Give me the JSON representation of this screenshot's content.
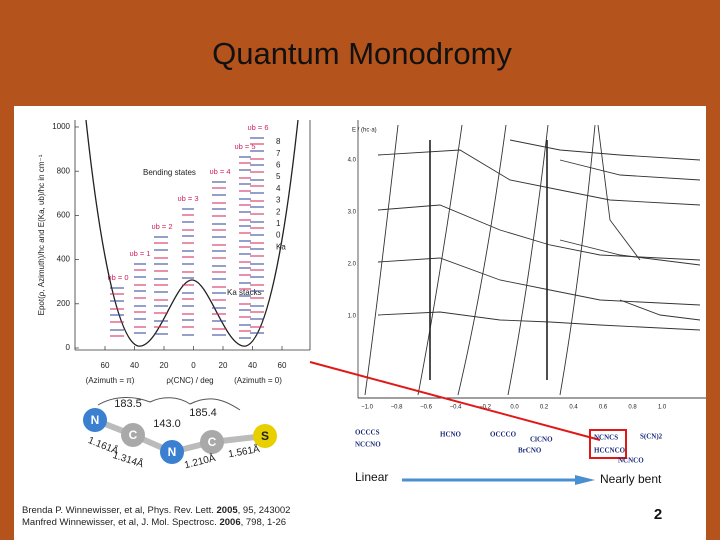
{
  "title": "Quantum Monodromy",
  "left_figure": {
    "y_axis_label": "Epot(ρ, Azimuth)/hc and E(Ka, υb)/hc in cm⁻¹",
    "y_ticks": [
      "0",
      "200",
      "400",
      "600",
      "800",
      "1000"
    ],
    "x_ticks": [
      "60",
      "40",
      "20",
      "0",
      "20",
      "40",
      "60"
    ],
    "x_labels": [
      "(Azimuth = π)",
      "ρ(CNC) / deg",
      "(Azimuth = 0)"
    ],
    "state_labels": [
      "υb = 0",
      "υb = 1",
      "υb = 2",
      "υb = 3",
      "υb = 4",
      "υb = 5",
      "υb = 6"
    ],
    "ka_labels": [
      "8",
      "7",
      "6",
      "5",
      "4",
      "3",
      "2",
      "1",
      "0",
      "Ka"
    ],
    "bending_states": "Bending states",
    "ka_stacks": "Ka stacks"
  },
  "right_figure": {
    "y_axis_label": "E / (hc·a)",
    "y_ticks": [
      "4.0",
      "3.0",
      "2.0",
      "1.0"
    ],
    "x_ticks": [
      "−1.0",
      "−0.8",
      "−0.6",
      "−0.4",
      "−0.2",
      "0.0",
      "0.2",
      "0.4",
      "0.6",
      "0.8",
      "1.0"
    ],
    "molecules": [
      "OCCCS",
      "NCCNO",
      "HCNO",
      "OCCCO",
      "ClCNO",
      "BrCNO",
      "NCNCS",
      "HCCNCO",
      "NCNCO",
      "S(CN)2"
    ]
  },
  "molecule": {
    "atoms": [
      "N",
      "C",
      "N",
      "C",
      "S"
    ],
    "angles": [
      "183.5",
      "143.0",
      "185.4"
    ],
    "lengths": [
      "1.161Å",
      "1.314Å",
      "1.210Å",
      "1.561Å"
    ]
  },
  "scale": {
    "left": "Linear",
    "right": "Nearly bent"
  },
  "citation": [
    {
      "pre": "Brenda P. Winnewisser, et al, Phys. Rev. Lett. ",
      "year": "2005",
      "post": ", 95, 243002"
    },
    {
      "pre": "Manfred Winnewisser, et al, J. Mol. Spectrosc. ",
      "year": "2006",
      "post": ", 798, 1-26"
    }
  ],
  "page_number": "2"
}
